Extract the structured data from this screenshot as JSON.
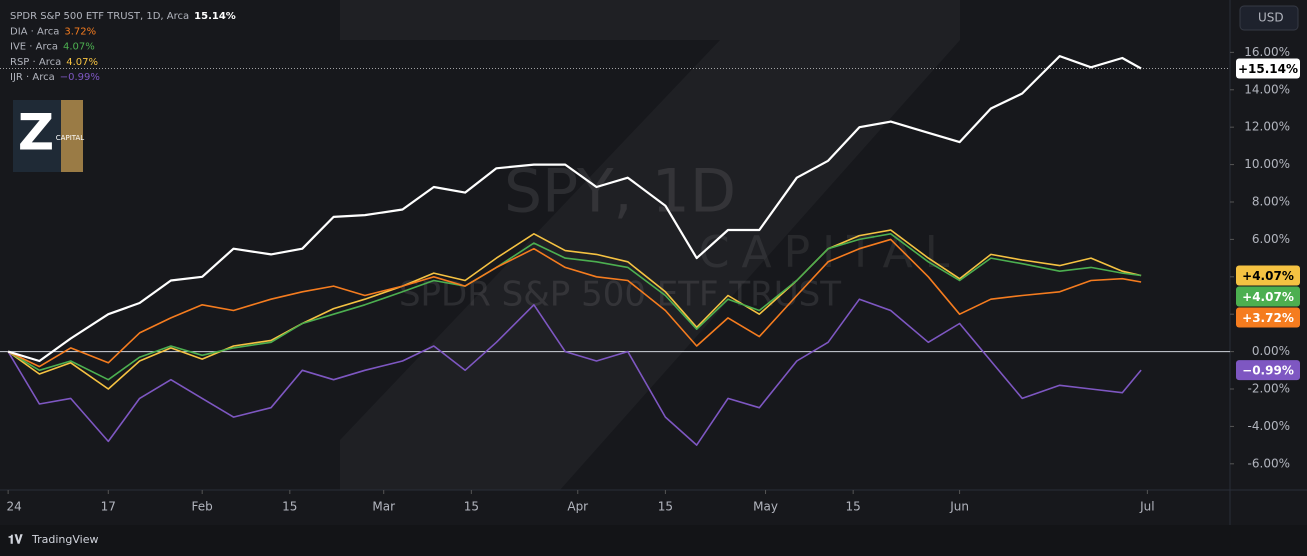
{
  "chart_data": {
    "type": "line",
    "currency": "USD",
    "brand": "TradingView",
    "watermark": {
      "symbol": "SPY, 1D",
      "company": "CAPITAL",
      "description": "SPDR S&P 500 ETF TRUST"
    },
    "logo": {
      "letter": "Z",
      "text": "CAPITAL"
    },
    "x": [
      0,
      5,
      10,
      16,
      21,
      26,
      31,
      36,
      42,
      47,
      52,
      57,
      63,
      68,
      73,
      78,
      84,
      89,
      94,
      99,
      105,
      110,
      115,
      120,
      126,
      131,
      136,
      141,
      147,
      152,
      157,
      162,
      168,
      173,
      178,
      181
    ],
    "xlim": [
      -1.3,
      195.2
    ],
    "xticks": [
      {
        "value": 0,
        "label": "24"
      },
      {
        "value": 16,
        "label": "17"
      },
      {
        "value": 31,
        "label": "Feb"
      },
      {
        "value": 45,
        "label": "15"
      },
      {
        "value": 60,
        "label": "Mar"
      },
      {
        "value": 74,
        "label": "15"
      },
      {
        "value": 91,
        "label": "Apr"
      },
      {
        "value": 105,
        "label": "15"
      },
      {
        "value": 121,
        "label": "May"
      },
      {
        "value": 135,
        "label": "15"
      },
      {
        "value": 152,
        "label": "Jun"
      },
      {
        "value": 182,
        "label": "Jul"
      }
    ],
    "ylim": [
      -7.4,
      18.8
    ],
    "yticks": [
      {
        "value": -6,
        "label": "-6.00%"
      },
      {
        "value": -4,
        "label": "-4.00%"
      },
      {
        "value": -2,
        "label": "-2.00%"
      },
      {
        "value": 0,
        "label": "0.00%"
      },
      {
        "value": 2,
        "label": "2.00%"
      },
      {
        "value": 4,
        "label": "4.00%"
      },
      {
        "value": 6,
        "label": "6.00%"
      },
      {
        "value": 8,
        "label": "8.00%"
      },
      {
        "value": 10,
        "label": "10.00%"
      },
      {
        "value": 12,
        "label": "12.00%"
      },
      {
        "value": 14,
        "label": "14.00%"
      },
      {
        "value": 16,
        "label": "16.00%"
      }
    ],
    "series": [
      {
        "name": "SPDR S&P 500 ETF TRUST, 1D, Arca",
        "color": "#ffffff",
        "legend_value": "15.14%",
        "price_label": "+15.14%",
        "values": [
          0,
          -0.5,
          0.7,
          2.0,
          2.6,
          3.8,
          4.0,
          5.5,
          5.2,
          5.5,
          7.2,
          7.3,
          7.6,
          8.8,
          8.5,
          9.8,
          10.0,
          10.0,
          8.8,
          9.3,
          7.8,
          5.0,
          6.5,
          6.5,
          9.3,
          10.2,
          12.0,
          12.3,
          11.7,
          11.2,
          13.0,
          13.8,
          15.8,
          15.2,
          15.7,
          15.14
        ]
      },
      {
        "name": "DIA · Arca",
        "color": "#f57c1f",
        "legend_value": "3.72%",
        "price_label": "+3.72%",
        "values": [
          0,
          -0.8,
          0.2,
          -0.6,
          1.0,
          1.8,
          2.5,
          2.2,
          2.8,
          3.2,
          3.5,
          3.0,
          3.5,
          4.0,
          3.5,
          4.5,
          5.5,
          4.5,
          4.0,
          3.8,
          2.2,
          0.3,
          1.8,
          0.8,
          3.0,
          4.8,
          5.5,
          6.0,
          4.0,
          2.0,
          2.8,
          3.0,
          3.2,
          3.8,
          3.9,
          3.72
        ]
      },
      {
        "name": "IVE · Arca",
        "color": "#4caf50",
        "legend_value": "4.07%",
        "price_label": "+4.07%",
        "values": [
          0,
          -1.0,
          -0.5,
          -1.5,
          -0.3,
          0.3,
          -0.2,
          0.2,
          0.5,
          1.5,
          2.0,
          2.5,
          3.2,
          3.8,
          3.5,
          4.5,
          5.8,
          5.0,
          4.8,
          4.5,
          3.0,
          1.2,
          2.8,
          2.2,
          3.8,
          5.5,
          6.0,
          6.3,
          4.8,
          3.8,
          5.0,
          4.7,
          4.3,
          4.5,
          4.2,
          4.07
        ]
      },
      {
        "name": "RSP · Arca",
        "color": "#f5c242",
        "legend_value": "4.07%",
        "price_label": "+4.07%",
        "values": [
          0,
          -1.2,
          -0.6,
          -2.0,
          -0.5,
          0.2,
          -0.4,
          0.3,
          0.6,
          1.5,
          2.3,
          2.8,
          3.5,
          4.2,
          3.8,
          5.0,
          6.3,
          5.4,
          5.2,
          4.8,
          3.2,
          1.3,
          3.0,
          2.0,
          3.8,
          5.5,
          6.2,
          6.5,
          5.0,
          3.9,
          5.2,
          4.9,
          4.6,
          5.0,
          4.3,
          4.07
        ]
      },
      {
        "name": "IJR · Arca",
        "color": "#7e57c2",
        "legend_value": "−0.99%",
        "price_label": "−0.99%",
        "values": [
          0,
          -2.8,
          -2.5,
          -4.8,
          -2.5,
          -1.5,
          -2.5,
          -3.5,
          -3.0,
          -1.0,
          -1.5,
          -1.0,
          -0.5,
          0.3,
          -1.0,
          0.5,
          2.5,
          0.0,
          -0.5,
          0.0,
          -3.5,
          -5.0,
          -2.5,
          -3.0,
          -0.5,
          0.5,
          2.8,
          2.2,
          0.5,
          1.5,
          -0.5,
          -2.5,
          -1.8,
          -2.0,
          -2.2,
          -0.99
        ]
      }
    ]
  }
}
